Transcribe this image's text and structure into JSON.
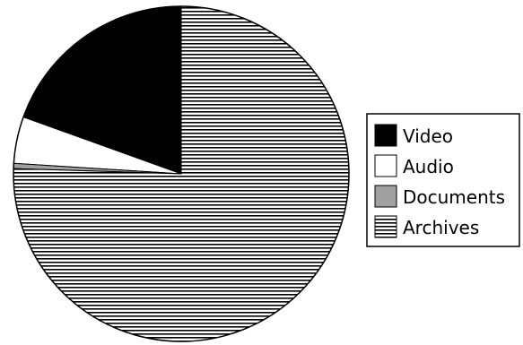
{
  "chart_data": {
    "type": "pie",
    "title": "",
    "legend_position": "right",
    "slices": [
      {
        "label": "Video",
        "value": 19.5,
        "fill": "#000000",
        "pattern": "solid"
      },
      {
        "label": "Audio",
        "value": 4.5,
        "fill": "#ffffff",
        "pattern": "solid"
      },
      {
        "label": "Documents",
        "value": 0.5,
        "fill": "#a0a0a0",
        "pattern": "solid"
      },
      {
        "label": "Archives",
        "value": 75.5,
        "fill": "#ffffff",
        "pattern": "horizontal-lines"
      }
    ]
  }
}
